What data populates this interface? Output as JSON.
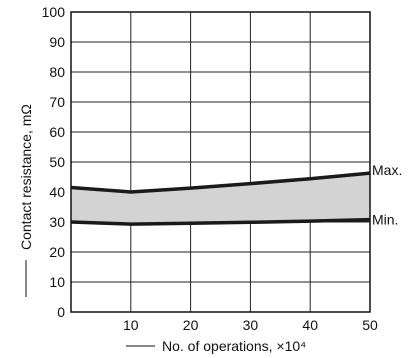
{
  "chart_data": {
    "type": "area",
    "x": [
      0,
      10,
      20,
      30,
      40,
      50
    ],
    "series": [
      {
        "name": "Max.",
        "values": [
          41.5,
          40,
          41.3,
          42.8,
          44.4,
          46.3
        ]
      },
      {
        "name": "Min.",
        "values": [
          30,
          29.3,
          29.6,
          29.9,
          30.3,
          30.8
        ]
      }
    ],
    "xlabel": "No. of operations, ×10⁴",
    "ylabel": "Contact resistance, mΩ",
    "xlim": [
      0,
      50
    ],
    "ylim": [
      0,
      100
    ],
    "x_ticks": [
      "10",
      "20",
      "30",
      "40",
      "50"
    ],
    "y_ticks": [
      "0",
      "10",
      "20",
      "30",
      "40",
      "50",
      "60",
      "70",
      "80",
      "90",
      "100"
    ],
    "grid": true,
    "band_fill": "#d3d3d3",
    "line_color": "#1a1a1a"
  }
}
